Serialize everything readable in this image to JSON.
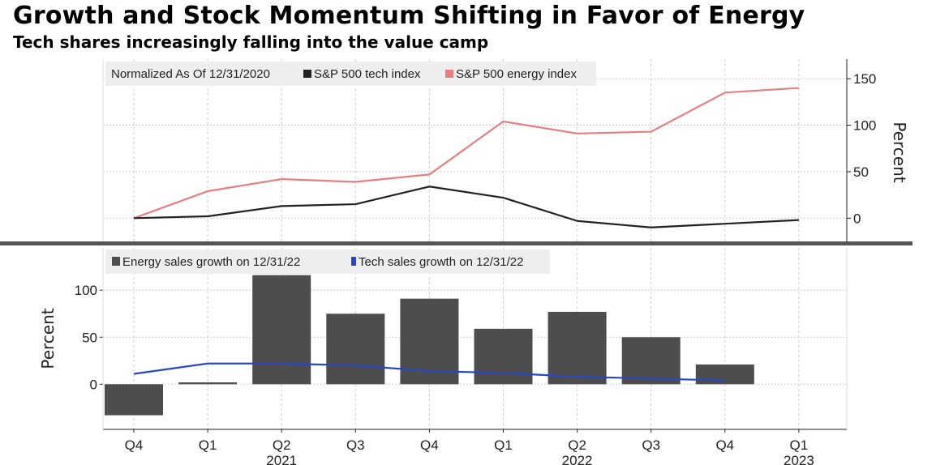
{
  "title": "Growth and Stock Momentum Shifting in Favor of Energy",
  "subtitle": "Tech shares increasingly falling into the value camp",
  "chart_data": [
    {
      "type": "line",
      "legend_title": "Normalized As Of 12/31/2020",
      "categories": [
        "Q4 2020",
        "Q1 2021",
        "Q2 2021",
        "Q3 2021",
        "Q4 2021",
        "Q1 2022",
        "Q2 2022",
        "Q3 2022",
        "Q4 2022",
        "Q1 2023"
      ],
      "series": [
        {
          "name": "S&P 500 tech index",
          "color": "#222222",
          "values": [
            0,
            2,
            13,
            15,
            34,
            22,
            -3,
            -10,
            -6,
            -2
          ]
        },
        {
          "name": "S&P 500 energy index",
          "color": "#e57f7f",
          "values": [
            0,
            29,
            42,
            39,
            47,
            104,
            91,
            93,
            135,
            140
          ]
        }
      ],
      "ylabel": "Percent",
      "yticks": [
        "0",
        "50",
        "100",
        "150"
      ],
      "ylim": [
        -25,
        171
      ],
      "y_axis_side": "right",
      "grid": true,
      "legend_position": "top-left"
    },
    {
      "type": "bar",
      "categories": [
        "Q4 2020",
        "Q1 2021",
        "Q2 2021",
        "Q3 2021",
        "Q4 2021",
        "Q1 2022",
        "Q2 2022",
        "Q3 2022",
        "Q4 2022",
        "Q1 2023"
      ],
      "series": [
        {
          "name": "Energy sales growth on 12/31/22",
          "type": "bar",
          "color": "#4d4d4d",
          "values": [
            -33,
            2,
            116,
            75,
            91,
            59,
            77,
            50,
            21,
            null
          ]
        },
        {
          "name": "Tech sales growth on 12/31/22",
          "type": "line",
          "color": "#2a46c4",
          "values": [
            11,
            22,
            22,
            20,
            14,
            12,
            8,
            6,
            4,
            null
          ]
        }
      ],
      "ylabel": "Percent",
      "yticks": [
        "0",
        "50",
        "100"
      ],
      "ylim": [
        -48,
        145
      ],
      "y_axis_side": "left",
      "grid": true,
      "legend_position": "top-left",
      "xtick_labels": [
        "Q4",
        "Q1",
        "Q2",
        "Q3",
        "Q4",
        "Q1",
        "Q2",
        "Q3",
        "Q4",
        "Q1"
      ],
      "year_labels": [
        {
          "label": "2021",
          "index": 2
        },
        {
          "label": "2022",
          "index": 6
        },
        {
          "label": "2023",
          "index": 9
        }
      ]
    }
  ]
}
